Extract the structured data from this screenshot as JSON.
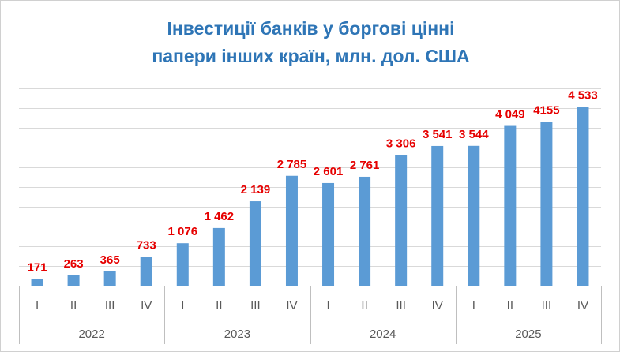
{
  "chart_data": {
    "type": "bar",
    "title": [
      "Інвестиції банків у боргові цінні",
      "папери інших країн, млн. дол. США"
    ],
    "xlabel": "",
    "ylabel": "",
    "ylim": [
      0,
      5000
    ],
    "grid": true,
    "legend": "none",
    "color": "#5b9bd5",
    "label_color": "#e60000",
    "years": [
      "2022",
      "2023",
      "2024",
      "2025"
    ],
    "quarters": [
      "I",
      "II",
      "III",
      "IV"
    ],
    "categories": [
      "I 2022",
      "II 2022",
      "III 2022",
      "IV 2022",
      "I 2023",
      "II 2023",
      "III 2023",
      "IV 2023",
      "I 2024",
      "II 2024",
      "III 2024",
      "IV 2024",
      "I 2025",
      "II 2025",
      "III 2025",
      "IV 2025"
    ],
    "values": [
      171,
      263,
      365,
      733,
      1076,
      1462,
      2139,
      2785,
      2601,
      2761,
      3306,
      3541,
      3544,
      4049,
      4155,
      4533
    ],
    "value_labels": [
      "171",
      "263",
      "365",
      "733",
      "1 076",
      "1 462",
      "2 139",
      "2 785",
      "2 601",
      "2 761",
      "3 306",
      "3 541",
      "3 544",
      "4 049",
      "4155",
      "4 533"
    ]
  }
}
